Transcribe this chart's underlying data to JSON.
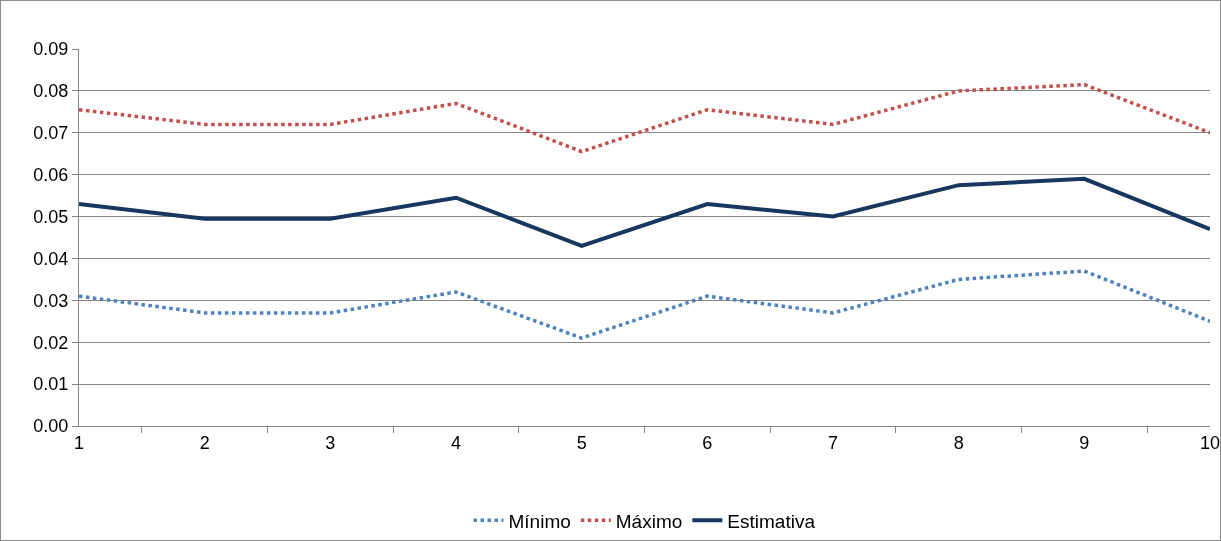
{
  "chart_data": {
    "type": "line",
    "categories": [
      "1",
      "2",
      "3",
      "4",
      "5",
      "6",
      "7",
      "8",
      "9",
      "10"
    ],
    "series": [
      {
        "name": "Mínimo",
        "color": "#4f81bd",
        "line_style": "dotted",
        "values": [
          0.031,
          0.027,
          0.027,
          0.032,
          0.021,
          0.031,
          0.027,
          0.035,
          0.037,
          0.025
        ]
      },
      {
        "name": "Máximo",
        "color": "#c0504d",
        "line_style": "dotted",
        "values": [
          0.0755,
          0.072,
          0.072,
          0.077,
          0.0655,
          0.0755,
          0.072,
          0.08,
          0.0815,
          0.07
        ]
      },
      {
        "name": "Estimativa",
        "color": "#17375e",
        "line_style": "solid",
        "values": [
          0.053,
          0.0495,
          0.0495,
          0.0545,
          0.043,
          0.053,
          0.05,
          0.0575,
          0.059,
          0.047
        ]
      }
    ],
    "ylim": [
      0,
      0.09
    ],
    "yticks": [
      {
        "value": 0,
        "label": "0.00"
      },
      {
        "value": 0.01,
        "label": "0.01"
      },
      {
        "value": 0.02,
        "label": "0.02"
      },
      {
        "value": 0.03,
        "label": "0.03"
      },
      {
        "value": 0.04,
        "label": "0.04"
      },
      {
        "value": 0.05,
        "label": "0.05"
      },
      {
        "value": 0.06,
        "label": "0.06"
      },
      {
        "value": 0.07,
        "label": "0.07"
      },
      {
        "value": 0.08,
        "label": "0.08"
      },
      {
        "value": 0.09,
        "label": "0.09"
      }
    ],
    "grid": "y",
    "legend": "bottom",
    "marker": "none"
  }
}
